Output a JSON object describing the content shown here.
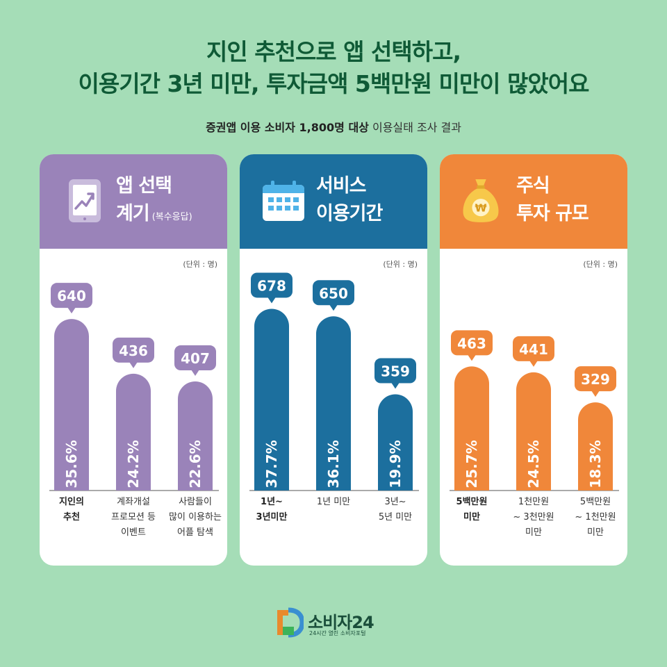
{
  "title_line1": "지인 추천으로 앱 선택하고,",
  "title_line2": "이용기간 3년 미만, 투자금액 5백만원 미만이 많았어요",
  "subtitle_bold": "증권앱 이용 소비자 1,800명 대상",
  "subtitle_rest": " 이용실태 조사 결과",
  "colors": {
    "purple": "#9a83b9",
    "blue": "#1c6f9e",
    "orange": "#f0873a",
    "title": "#0f5a36"
  },
  "panels": [
    {
      "title_line1": "앱 선택",
      "title_line2": "계기",
      "note": "(복수응답)",
      "icon": "smartphone-chart-icon",
      "unit": "(단위 : 명)",
      "color": "#9a83b9",
      "bubble_color": "#9a83b9"
    },
    {
      "title_line1": "서비스",
      "title_line2": "이용기간",
      "note": "",
      "icon": "calendar-icon",
      "unit": "(단위 : 명)",
      "color": "#1c6f9e",
      "bubble_color": "#1c6f9e"
    },
    {
      "title_line1": "주식",
      "title_line2": "투자 규모",
      "note": "",
      "icon": "money-bag-icon",
      "unit": "(단위 : 명)",
      "color": "#f0873a",
      "bubble_color": "#f0873a"
    }
  ],
  "chart_data": [
    {
      "type": "bar",
      "title": "앱 선택 계기 (복수응답)",
      "unit": "(단위 : 명)",
      "categories": [
        [
          "지인의",
          "추천"
        ],
        [
          "계좌개설",
          "프로모션 등",
          "이벤트"
        ],
        [
          "사람들이",
          "많이 이용하는",
          "어플 탐색"
        ]
      ],
      "values": [
        640,
        436,
        407
      ],
      "percents": [
        "35.6%",
        "24.2%",
        "22.6%"
      ],
      "highlight": [
        true,
        false,
        false
      ]
    },
    {
      "type": "bar",
      "title": "서비스 이용기간",
      "unit": "(단위 : 명)",
      "categories": [
        [
          "1년~",
          "3년미만"
        ],
        [
          "1년 미만"
        ],
        [
          "3년~",
          "5년 미만"
        ]
      ],
      "values": [
        678,
        650,
        359
      ],
      "percents": [
        "37.7%",
        "36.1%",
        "19.9%"
      ],
      "highlight": [
        true,
        false,
        false
      ]
    },
    {
      "type": "bar",
      "title": "주식 투자 규모",
      "unit": "(단위 : 명)",
      "categories": [
        [
          "5백만원",
          "미만"
        ],
        [
          "1천만원",
          "~ 3천만원",
          "미만"
        ],
        [
          "5백만원",
          "~ 1천만원",
          "미만"
        ]
      ],
      "values": [
        463,
        441,
        329
      ],
      "percents": [
        "25.7%",
        "24.5%",
        "18.3%"
      ],
      "highlight": [
        true,
        false,
        false
      ]
    }
  ],
  "logo": {
    "name": "소비자24",
    "tagline": "24시간 열린 소비자포털"
  }
}
